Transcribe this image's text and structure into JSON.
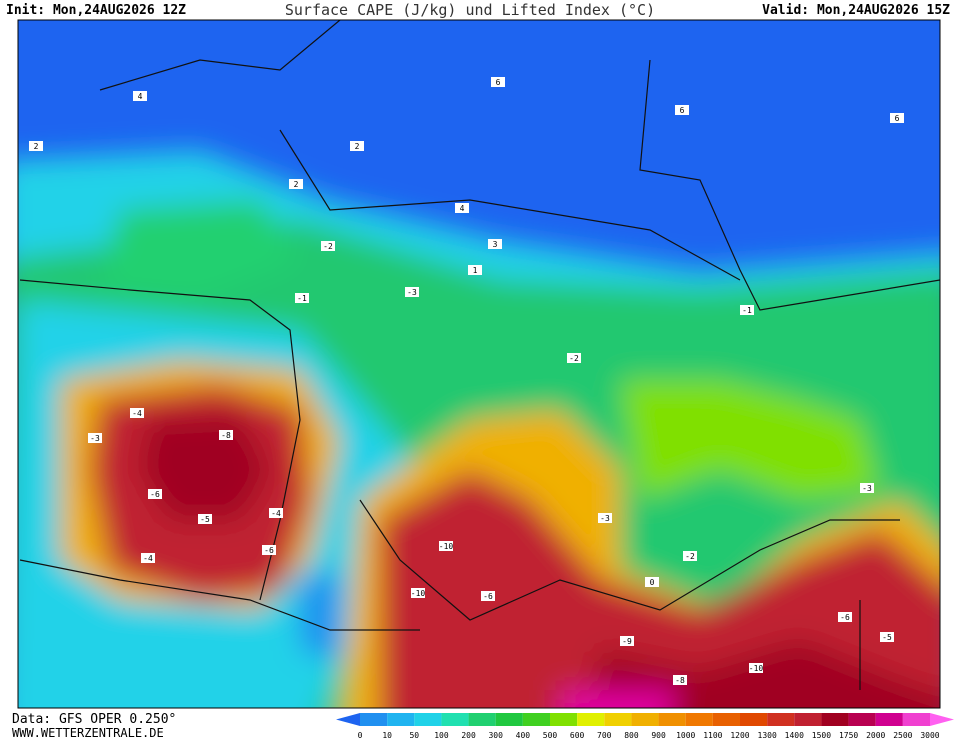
{
  "header": {
    "init": "Init: Mon,24AUG2026 12Z",
    "title": "Surface CAPE (J/kg) und Lifted Index (°C)",
    "valid": "Valid: Mon,24AUG2026 15Z"
  },
  "footer": {
    "data": "Data: GFS OPER 0.250°",
    "site": "WWW.WETTERZENTRALE.DE"
  },
  "colorbar": {
    "ticks": [
      0,
      10,
      50,
      100,
      200,
      300,
      400,
      500,
      600,
      700,
      800,
      900,
      1000,
      1100,
      1200,
      1300,
      1400,
      1500,
      1750,
      2000,
      2500,
      3000
    ],
    "colors": [
      "#1e64f0",
      "#2090f0",
      "#20b4f0",
      "#20d2e8",
      "#20e0b0",
      "#20d070",
      "#20c840",
      "#40d020",
      "#80e000",
      "#e0f000",
      "#f0d000",
      "#f0b000",
      "#f09000",
      "#f07800",
      "#e86000",
      "#e04800",
      "#d03020",
      "#c02030",
      "#a00020",
      "#b80050",
      "#d00090",
      "#f040d0",
      "#ff60f0"
    ]
  },
  "lifted_index_labels": [
    4,
    2,
    2,
    6,
    6,
    6,
    4,
    3,
    2,
    -2,
    -1,
    -3,
    -2,
    -4,
    -3,
    -8,
    -6,
    -5,
    -4,
    -6,
    -10,
    -10,
    -6,
    -9,
    -10,
    -8,
    -6,
    -5,
    -3,
    -2,
    -1,
    -3,
    1,
    0,
    -4
  ]
}
